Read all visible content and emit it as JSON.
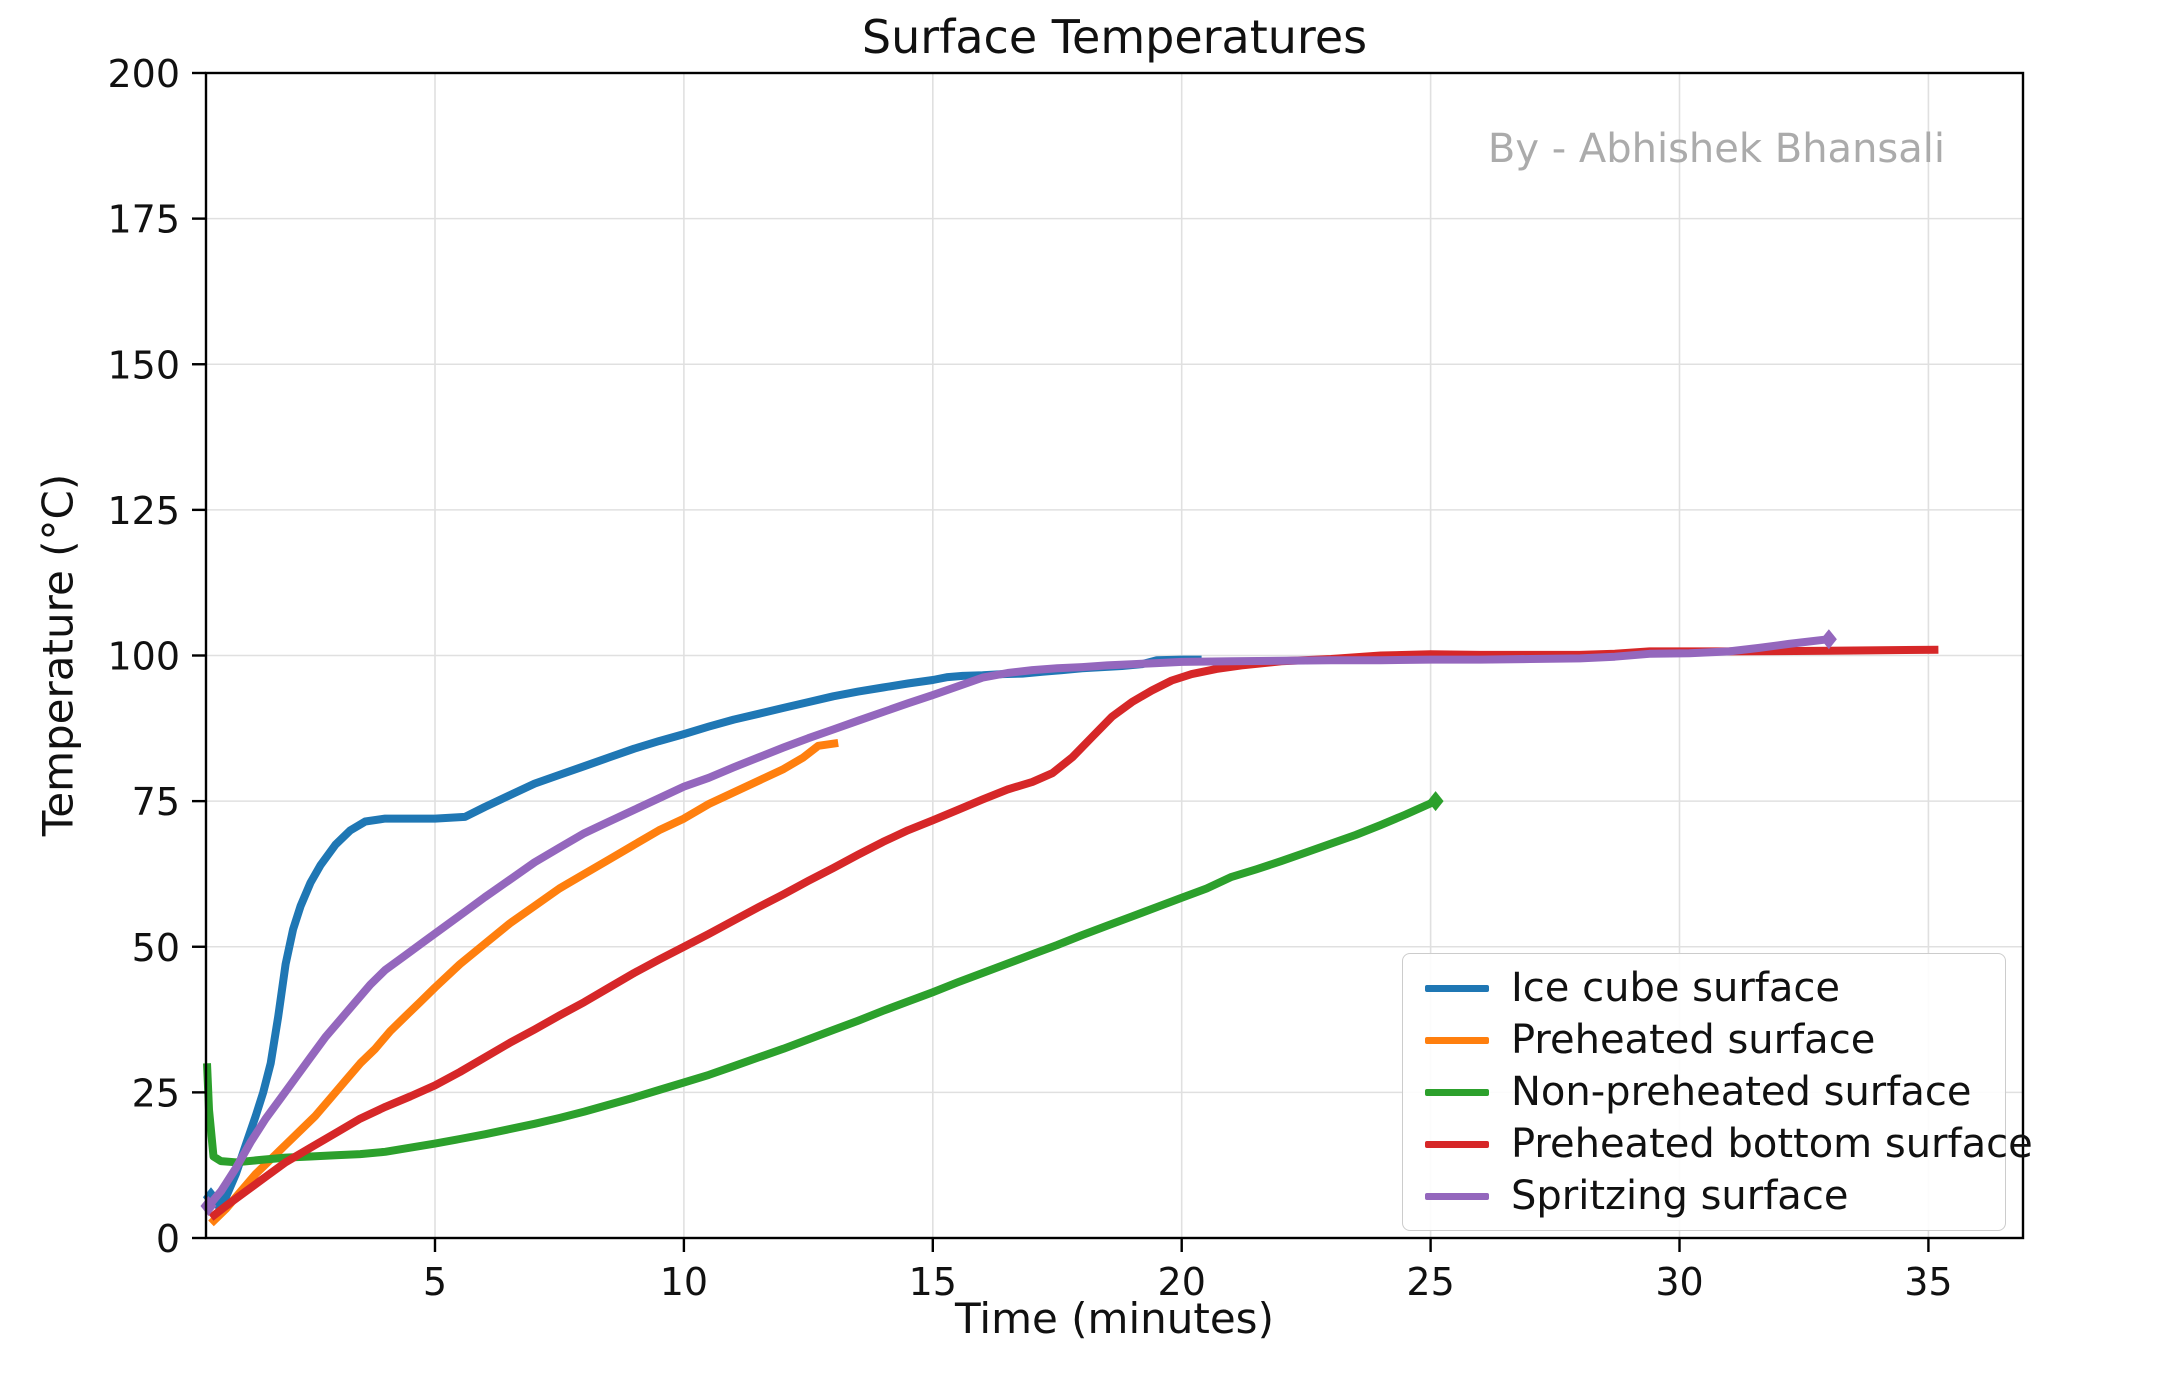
{
  "figure": {
    "title": "Surface Temperatures",
    "watermark": "By - Abhishek Bhansali",
    "watermark_color": "#ababab"
  },
  "chart_data": {
    "type": "line",
    "title": "Surface Temperatures",
    "xlabel": "Time (minutes)",
    "ylabel": "Temperature (°C)",
    "xlim": [
      0.4,
      36.9
    ],
    "ylim": [
      0,
      200
    ],
    "xticks": [
      5,
      10,
      15,
      20,
      25,
      30,
      35
    ],
    "yticks": [
      0,
      25,
      50,
      75,
      100,
      125,
      150,
      175,
      200
    ],
    "grid": true,
    "grid_color": "#e0e0e0",
    "legend_position": "lower right",
    "legend_labels": [
      "Ice cube surface",
      "Preheated surface",
      "Non-preheated surface",
      "Preheated bottom surface",
      "Spritzing surface"
    ],
    "series": [
      {
        "label": "Ice cube surface",
        "color": "#1f77b4",
        "marker_start": true,
        "marker_end": false,
        "points": [
          [
            0.5,
            7
          ],
          [
            0.65,
            5.5
          ],
          [
            0.8,
            7
          ],
          [
            1.0,
            11
          ],
          [
            1.2,
            16
          ],
          [
            1.4,
            21
          ],
          [
            1.55,
            25
          ],
          [
            1.7,
            30
          ],
          [
            1.85,
            38
          ],
          [
            2.0,
            47
          ],
          [
            2.15,
            53
          ],
          [
            2.3,
            57
          ],
          [
            2.5,
            61
          ],
          [
            2.7,
            64
          ],
          [
            3.0,
            67.5
          ],
          [
            3.3,
            70
          ],
          [
            3.6,
            71.5
          ],
          [
            4.0,
            72
          ],
          [
            4.5,
            72
          ],
          [
            5.0,
            72
          ],
          [
            5.6,
            72.3
          ],
          [
            6.0,
            74
          ],
          [
            6.5,
            76
          ],
          [
            7.0,
            78
          ],
          [
            7.5,
            79.5
          ],
          [
            8.0,
            81
          ],
          [
            8.5,
            82.5
          ],
          [
            9.0,
            84
          ],
          [
            9.5,
            85.3
          ],
          [
            10.0,
            86.5
          ],
          [
            10.5,
            87.8
          ],
          [
            11.0,
            89
          ],
          [
            11.5,
            90
          ],
          [
            12.0,
            91
          ],
          [
            12.5,
            92
          ],
          [
            13.0,
            93
          ],
          [
            13.5,
            93.8
          ],
          [
            14.0,
            94.5
          ],
          [
            14.5,
            95.2
          ],
          [
            15.0,
            95.8
          ],
          [
            15.3,
            96.3
          ],
          [
            15.6,
            96.5
          ],
          [
            16.0,
            96.6
          ],
          [
            16.4,
            96.8
          ],
          [
            16.8,
            96.9
          ],
          [
            17.2,
            97.2
          ],
          [
            17.6,
            97.5
          ],
          [
            18.0,
            97.8
          ],
          [
            18.4,
            98.0
          ],
          [
            18.8,
            98.2
          ],
          [
            19.2,
            98.5
          ],
          [
            19.5,
            99.2
          ],
          [
            20.0,
            99.3
          ],
          [
            20.4,
            99.3
          ]
        ]
      },
      {
        "label": "Preheated surface",
        "color": "#ff7f0e",
        "marker_start": false,
        "marker_end": false,
        "points": [
          [
            0.5,
            2.5
          ],
          [
            0.8,
            5
          ],
          [
            1.1,
            8
          ],
          [
            1.4,
            11
          ],
          [
            1.7,
            13.5
          ],
          [
            2.0,
            16
          ],
          [
            2.3,
            18.5
          ],
          [
            2.6,
            21
          ],
          [
            2.9,
            24
          ],
          [
            3.2,
            27
          ],
          [
            3.5,
            30
          ],
          [
            3.8,
            32.5
          ],
          [
            4.1,
            35.5
          ],
          [
            4.4,
            38
          ],
          [
            4.7,
            40.5
          ],
          [
            5.0,
            43
          ],
          [
            5.5,
            47
          ],
          [
            6.0,
            50.5
          ],
          [
            6.5,
            54
          ],
          [
            7.0,
            57
          ],
          [
            7.5,
            60
          ],
          [
            8.0,
            62.5
          ],
          [
            8.5,
            65
          ],
          [
            9.0,
            67.5
          ],
          [
            9.5,
            70
          ],
          [
            10.0,
            72
          ],
          [
            10.5,
            74.5
          ],
          [
            11.0,
            76.5
          ],
          [
            11.5,
            78.5
          ],
          [
            12.0,
            80.5
          ],
          [
            12.4,
            82.5
          ],
          [
            12.7,
            84.5
          ],
          [
            13.1,
            85
          ]
        ]
      },
      {
        "label": "Non-preheated surface",
        "color": "#2ca02c",
        "marker_start": false,
        "marker_end": true,
        "points": [
          [
            0.42,
            30
          ],
          [
            0.46,
            22
          ],
          [
            0.55,
            14
          ],
          [
            0.7,
            13.2
          ],
          [
            1.0,
            13
          ],
          [
            1.5,
            13.4
          ],
          [
            2.0,
            13.8
          ],
          [
            2.5,
            14
          ],
          [
            3.0,
            14.2
          ],
          [
            3.5,
            14.4
          ],
          [
            4.0,
            14.8
          ],
          [
            4.5,
            15.5
          ],
          [
            5.0,
            16.2
          ],
          [
            5.5,
            17
          ],
          [
            6.0,
            17.8
          ],
          [
            6.5,
            18.7
          ],
          [
            7.0,
            19.6
          ],
          [
            7.5,
            20.6
          ],
          [
            8.0,
            21.7
          ],
          [
            8.5,
            22.9
          ],
          [
            9.0,
            24.1
          ],
          [
            9.5,
            25.4
          ],
          [
            10.0,
            26.7
          ],
          [
            10.5,
            28
          ],
          [
            11.0,
            29.5
          ],
          [
            11.5,
            31
          ],
          [
            12.0,
            32.5
          ],
          [
            12.5,
            34.1
          ],
          [
            13.0,
            35.7
          ],
          [
            13.5,
            37.3
          ],
          [
            14.0,
            39
          ],
          [
            14.5,
            40.6
          ],
          [
            15.0,
            42.2
          ],
          [
            15.5,
            43.9
          ],
          [
            16.0,
            45.5
          ],
          [
            16.5,
            47.1
          ],
          [
            17.0,
            48.7
          ],
          [
            17.5,
            50.3
          ],
          [
            18.0,
            52
          ],
          [
            18.5,
            53.6
          ],
          [
            19.0,
            55.2
          ],
          [
            19.5,
            56.8
          ],
          [
            20.0,
            58.4
          ],
          [
            20.5,
            60
          ],
          [
            21.0,
            62
          ],
          [
            21.5,
            63.3
          ],
          [
            22.0,
            64.7
          ],
          [
            22.5,
            66.2
          ],
          [
            23.0,
            67.7
          ],
          [
            23.5,
            69.2
          ],
          [
            24.0,
            70.9
          ],
          [
            24.5,
            72.7
          ],
          [
            25.1,
            75
          ]
        ]
      },
      {
        "label": "Preheated bottom surface",
        "color": "#d62728",
        "marker_start": false,
        "marker_end": false,
        "points": [
          [
            0.5,
            3.5
          ],
          [
            0.8,
            5.5
          ],
          [
            1.2,
            8
          ],
          [
            1.6,
            10.5
          ],
          [
            2.0,
            13
          ],
          [
            2.5,
            15.5
          ],
          [
            3.0,
            18
          ],
          [
            3.5,
            20.5
          ],
          [
            4.0,
            22.5
          ],
          [
            4.5,
            24.3
          ],
          [
            5.0,
            26.2
          ],
          [
            5.5,
            28.5
          ],
          [
            6.0,
            31
          ],
          [
            6.5,
            33.5
          ],
          [
            7.0,
            35.8
          ],
          [
            7.5,
            38.2
          ],
          [
            8.0,
            40.5
          ],
          [
            8.5,
            43
          ],
          [
            9.0,
            45.5
          ],
          [
            9.5,
            47.8
          ],
          [
            10.0,
            50
          ],
          [
            10.5,
            52.2
          ],
          [
            11.0,
            54.5
          ],
          [
            11.5,
            56.8
          ],
          [
            12.0,
            59
          ],
          [
            12.5,
            61.3
          ],
          [
            13.0,
            63.5
          ],
          [
            13.5,
            65.8
          ],
          [
            14.0,
            68
          ],
          [
            14.5,
            70
          ],
          [
            15.0,
            71.7
          ],
          [
            15.5,
            73.5
          ],
          [
            16.0,
            75.3
          ],
          [
            16.5,
            77
          ],
          [
            17.0,
            78.3
          ],
          [
            17.4,
            79.8
          ],
          [
            17.8,
            82.5
          ],
          [
            18.2,
            86
          ],
          [
            18.6,
            89.5
          ],
          [
            19.0,
            92
          ],
          [
            19.4,
            94
          ],
          [
            19.8,
            95.7
          ],
          [
            20.2,
            96.8
          ],
          [
            20.7,
            97.7
          ],
          [
            21.2,
            98.3
          ],
          [
            22.0,
            99
          ],
          [
            23.0,
            99.4
          ],
          [
            24.0,
            100
          ],
          [
            25.0,
            100.2
          ],
          [
            26.0,
            100.1
          ],
          [
            27.0,
            100.1
          ],
          [
            28.0,
            100.1
          ],
          [
            28.7,
            100.3
          ],
          [
            29.4,
            100.7
          ],
          [
            31.0,
            100.7
          ],
          [
            33.0,
            100.8
          ],
          [
            35.2,
            101
          ]
        ]
      },
      {
        "label": "Spritzing surface",
        "color": "#9467bd",
        "marker_start": true,
        "marker_end": true,
        "points": [
          [
            0.45,
            5.5
          ],
          [
            0.7,
            8
          ],
          [
            1.0,
            12
          ],
          [
            1.3,
            16.5
          ],
          [
            1.6,
            20.5
          ],
          [
            1.9,
            24
          ],
          [
            2.2,
            27.5
          ],
          [
            2.5,
            31
          ],
          [
            2.8,
            34.5
          ],
          [
            3.1,
            37.5
          ],
          [
            3.4,
            40.5
          ],
          [
            3.7,
            43.5
          ],
          [
            4.0,
            46
          ],
          [
            4.4,
            48.5
          ],
          [
            4.8,
            51
          ],
          [
            5.2,
            53.5
          ],
          [
            5.6,
            56
          ],
          [
            6.0,
            58.5
          ],
          [
            6.5,
            61.5
          ],
          [
            7.0,
            64.5
          ],
          [
            7.5,
            67
          ],
          [
            8.0,
            69.5
          ],
          [
            8.5,
            71.5
          ],
          [
            9.0,
            73.5
          ],
          [
            9.5,
            75.5
          ],
          [
            10.0,
            77.5
          ],
          [
            10.5,
            79
          ],
          [
            11.0,
            80.8
          ],
          [
            11.5,
            82.5
          ],
          [
            12.0,
            84.2
          ],
          [
            12.5,
            85.8
          ],
          [
            13.0,
            87.3
          ],
          [
            13.5,
            88.8
          ],
          [
            14.0,
            90.3
          ],
          [
            14.5,
            91.8
          ],
          [
            15.0,
            93.2
          ],
          [
            15.5,
            94.7
          ],
          [
            16.0,
            96.2
          ],
          [
            16.5,
            97
          ],
          [
            17.0,
            97.5
          ],
          [
            17.5,
            97.8
          ],
          [
            18.0,
            98
          ],
          [
            18.5,
            98.3
          ],
          [
            19.0,
            98.5
          ],
          [
            19.5,
            98.7
          ],
          [
            20.0,
            98.9
          ],
          [
            21.0,
            99
          ],
          [
            22.0,
            99.1
          ],
          [
            23.0,
            99.2
          ],
          [
            24.0,
            99.2
          ],
          [
            25.0,
            99.3
          ],
          [
            26.0,
            99.3
          ],
          [
            27.0,
            99.4
          ],
          [
            28.0,
            99.5
          ],
          [
            28.7,
            99.8
          ],
          [
            29.4,
            100.3
          ],
          [
            30.2,
            100.4
          ],
          [
            31.0,
            100.7
          ],
          [
            31.6,
            101.3
          ],
          [
            32.2,
            102
          ],
          [
            33.0,
            102.8
          ]
        ]
      }
    ]
  }
}
